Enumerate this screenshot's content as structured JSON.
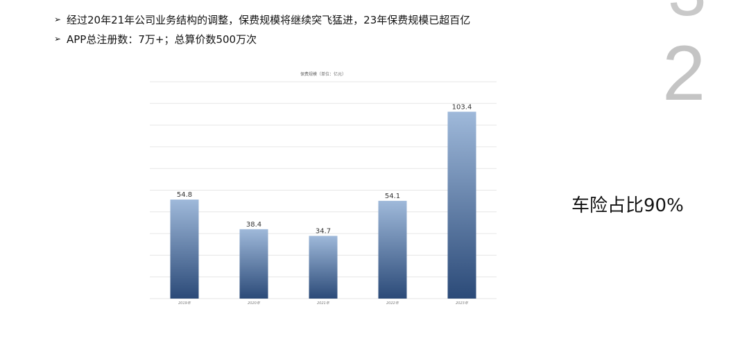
{
  "bullets": [
    {
      "arrow": "➢",
      "text": "经过20年21年公司业务结构的调整，保费规模将继续突飞猛进，23年保费规模已超百亿"
    },
    {
      "arrow": "➢",
      "text": "APP总注册数：7万+；总算价数500万次"
    }
  ],
  "side": {
    "digit": "2",
    "note": "车险占比90%"
  },
  "chart_data": {
    "type": "bar",
    "title": "保费规模（单位：亿元）",
    "categories": [
      "2019年",
      "2020年",
      "2021年",
      "2022年",
      "2023年"
    ],
    "values": [
      54.8,
      38.4,
      34.7,
      54.1,
      103.4
    ],
    "value_labels": [
      "54.8",
      "38.4",
      "34.7",
      "54.1",
      "103.4"
    ],
    "ylim": [
      0,
      120
    ],
    "grid": true,
    "colors": {
      "bar_top": "#9fb9da",
      "bar_bottom": "#2b4a78",
      "grid": "#e6e6e6"
    }
  }
}
